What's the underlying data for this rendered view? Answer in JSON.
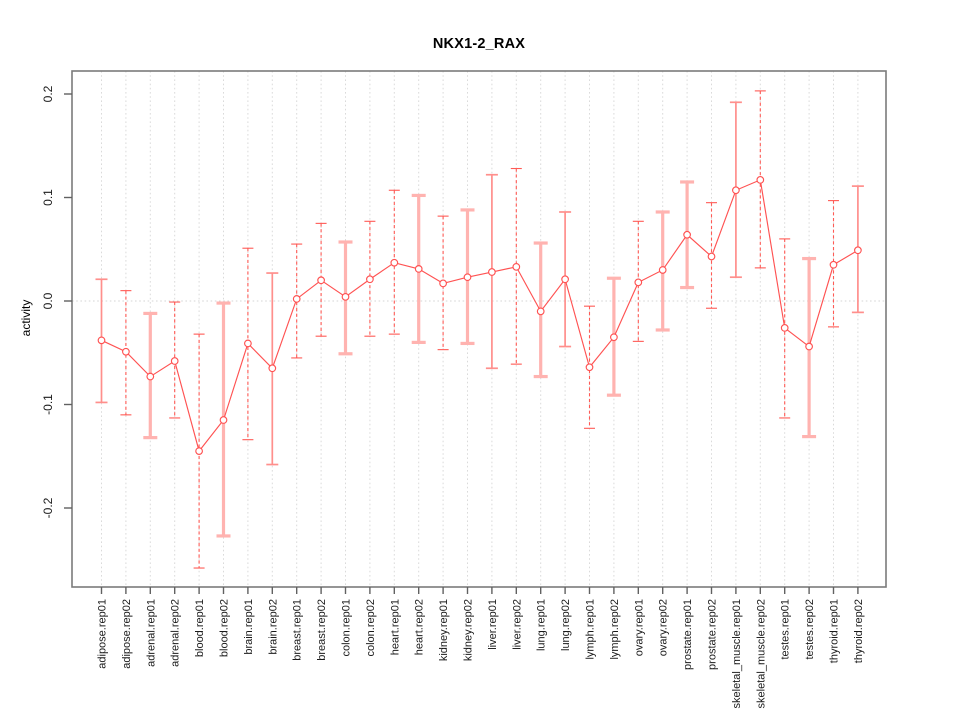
{
  "chart_data": {
    "type": "line",
    "subtype": "points-with-error-bars",
    "title": "NKX1-2_RAX",
    "xlabel": "",
    "ylabel": "activity",
    "ylim": [
      -0.276,
      0.222
    ],
    "yticks": [
      0.2,
      0.1,
      0.0,
      -0.1,
      -0.2
    ],
    "ytick_labels": [
      "0.2",
      "0.1",
      "0.0",
      "-0.1",
      "-0.2"
    ],
    "grid": "vertical-dotted",
    "zero_line": true,
    "legend": "none",
    "categories": [
      "adipose.rep01",
      "adipose.rep02",
      "adrenal.rep01",
      "adrenal.rep02",
      "blood.rep01",
      "blood.rep02",
      "brain.rep01",
      "brain.rep02",
      "breast.rep01",
      "breast.rep02",
      "colon.rep01",
      "colon.rep02",
      "heart.rep01",
      "heart.rep02",
      "kidney.rep01",
      "kidney.rep02",
      "liver.rep01",
      "liver.rep02",
      "lung.rep01",
      "lung.rep02",
      "lymph.rep01",
      "lymph.rep02",
      "ovary.rep01",
      "ovary.rep02",
      "prostate.rep01",
      "prostate.rep02",
      "skeletal_muscle.rep01",
      "skeletal_muscle.rep02",
      "testes.rep01",
      "testes.rep02",
      "thyroid.rep01",
      "thyroid.rep02"
    ],
    "series": [
      {
        "name": "activity",
        "values": [
          -0.038,
          -0.049,
          -0.073,
          -0.058,
          -0.145,
          -0.115,
          -0.041,
          -0.065,
          0.002,
          0.02,
          0.004,
          0.021,
          0.037,
          0.031,
          0.017,
          0.023,
          0.028,
          0.033,
          -0.01,
          0.021,
          -0.064,
          -0.035,
          0.018,
          0.03,
          0.064,
          0.043,
          0.107,
          0.117,
          -0.026,
          -0.044,
          0.035,
          0.049
        ],
        "ci_high": [
          0.021,
          0.01,
          -0.012,
          -0.001,
          -0.032,
          -0.002,
          0.051,
          0.027,
          0.055,
          0.075,
          0.057,
          0.077,
          0.107,
          0.102,
          0.082,
          0.088,
          0.122,
          0.128,
          0.056,
          0.086,
          -0.005,
          0.022,
          0.077,
          0.086,
          0.115,
          0.095,
          0.192,
          0.203,
          0.06,
          0.041,
          0.097,
          0.111
        ],
        "ci_low": [
          -0.098,
          -0.11,
          -0.132,
          -0.113,
          -0.258,
          -0.227,
          -0.134,
          -0.158,
          -0.055,
          -0.034,
          -0.051,
          -0.034,
          -0.032,
          -0.04,
          -0.047,
          -0.041,
          -0.065,
          -0.061,
          -0.073,
          -0.044,
          -0.123,
          -0.091,
          -0.039,
          -0.028,
          0.013,
          -0.007,
          0.023,
          0.032,
          -0.113,
          -0.131,
          -0.025,
          -0.011
        ],
        "bar_styles": [
          "solid-thin",
          "dashed",
          "solid-thick",
          "dashed",
          "dashed",
          "solid-thick",
          "dashed",
          "solid-thin",
          "dashed",
          "dashed",
          "solid-thick",
          "dashed",
          "dashed",
          "solid-thick",
          "dashed",
          "solid-thick",
          "solid-thin",
          "dashed",
          "solid-thick",
          "solid-thin",
          "dashed",
          "solid-thick",
          "dashed",
          "solid-thick",
          "solid-thick",
          "dashed",
          "solid-thin",
          "dashed",
          "dashed",
          "solid-thick",
          "dashed",
          "solid-thin"
        ]
      }
    ],
    "colors": {
      "point": "#ff5252",
      "line": "#ff5252",
      "bar_dashed": "#ff5a55",
      "bar_solid_thin": "#ff8f8c",
      "bar_solid_thick": "#ffb3b0",
      "grid": "#dadada",
      "zero_line": "#d6d6d6",
      "box": "#7b7b7b",
      "tick": "#616161",
      "text": "#1a1a1a",
      "background": "#ffffff"
    }
  }
}
